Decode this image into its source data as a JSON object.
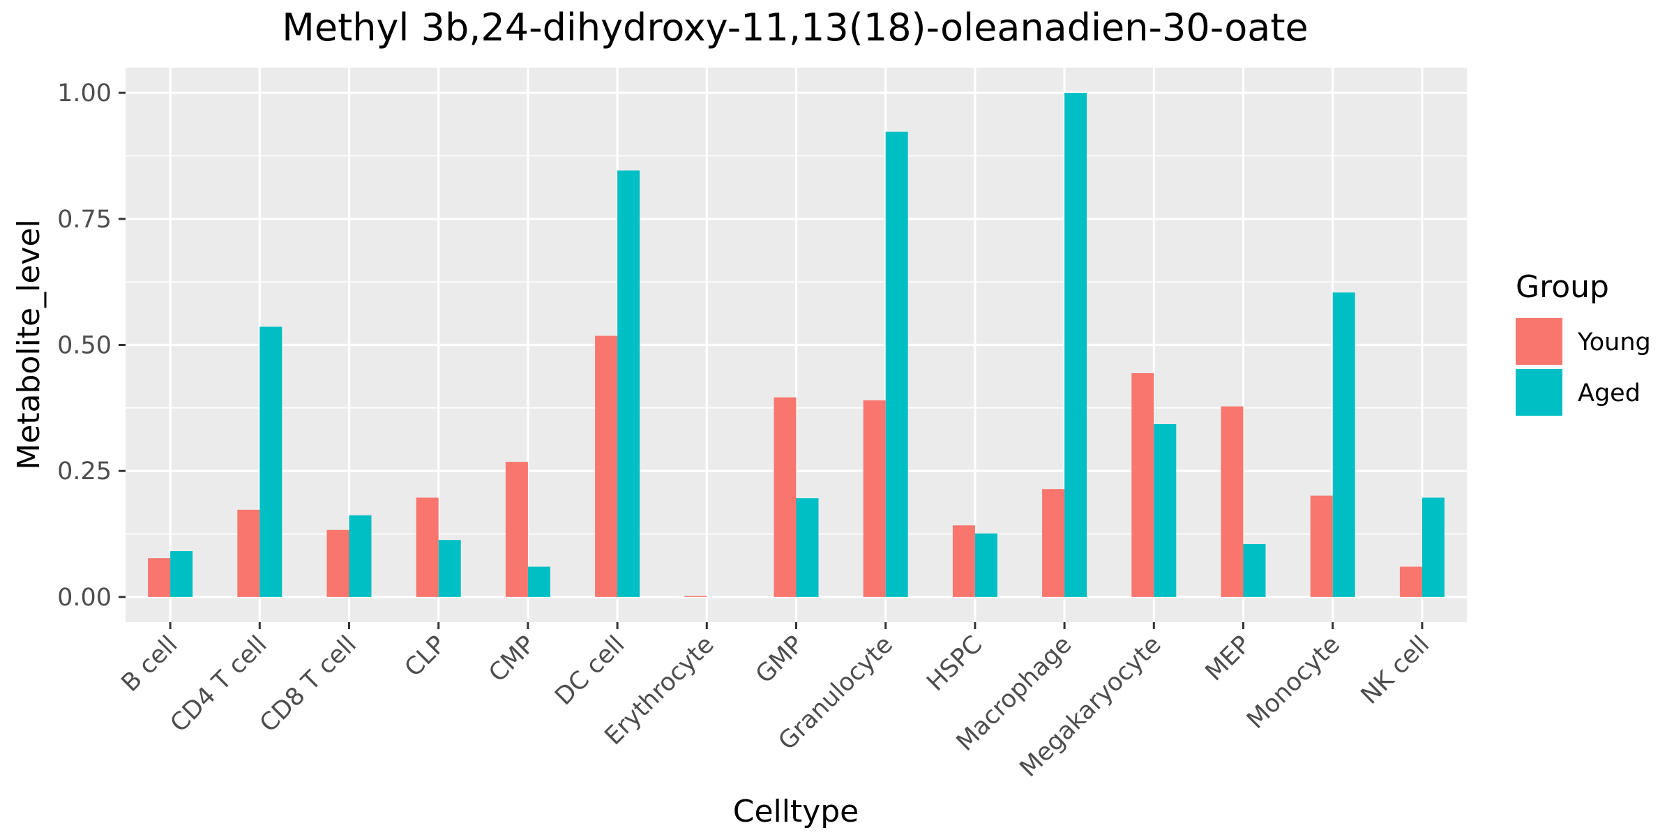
{
  "chart_data": {
    "type": "bar",
    "title": "Methyl 3b,24-dihydroxy-11,13(18)-oleanadien-30-oate",
    "xlabel": "Celltype",
    "ylabel": "Metabolite_level",
    "ylim": [
      -0.05,
      1.05
    ],
    "yticks": [
      0,
      0.25,
      0.5,
      0.75,
      1.0
    ],
    "ytick_labels": [
      "0.00",
      "0.25",
      "0.50",
      "0.75",
      "1.00"
    ],
    "categories": [
      "B cell",
      "CD4 T cell",
      "CD8 T cell",
      "CLP",
      "CMP",
      "DC cell",
      "Erythrocyte",
      "GMP",
      "Granulocyte",
      "HSPC",
      "Macrophage",
      "Megakaryocyte",
      "MEP",
      "Monocyte",
      "NK cell"
    ],
    "series": [
      {
        "name": "Young",
        "color": "#F8766D",
        "values": [
          0.077,
          0.173,
          0.133,
          0.197,
          0.268,
          0.518,
          0.002,
          0.396,
          0.39,
          0.142,
          0.214,
          0.444,
          0.378,
          0.201,
          0.06
        ]
      },
      {
        "name": "Aged",
        "color": "#00BFC4",
        "values": [
          0.091,
          0.536,
          0.162,
          0.113,
          0.06,
          0.846,
          0.0,
          0.196,
          0.923,
          0.126,
          1.0,
          0.343,
          0.105,
          0.604,
          0.197
        ]
      }
    ],
    "legend": {
      "title": "Group",
      "position": "right"
    },
    "grid": true,
    "panel_background": "#EBEBEB",
    "grid_color": "#FFFFFF"
  }
}
